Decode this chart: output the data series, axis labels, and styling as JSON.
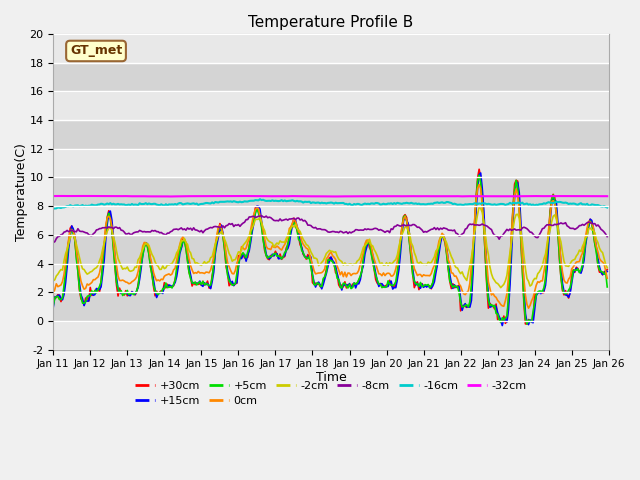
{
  "title": "Temperature Profile B",
  "xlabel": "Time",
  "ylabel": "Temperature(C)",
  "ylim": [
    -2,
    20
  ],
  "annotation": "GT_met",
  "fig_bg": "#f0f0f0",
  "plot_bg": "#e0e0e0",
  "band_colors": [
    "#e0e0e0",
    "#cccccc"
  ],
  "series": [
    {
      "label": "+30cm",
      "color": "#ff0000",
      "lw": 1.2
    },
    {
      "label": "+15cm",
      "color": "#0000ff",
      "lw": 1.2
    },
    {
      "label": "+5cm",
      "color": "#00dd00",
      "lw": 1.2
    },
    {
      "label": "0cm",
      "color": "#ff8800",
      "lw": 1.2
    },
    {
      "label": "-2cm",
      "color": "#cccc00",
      "lw": 1.2
    },
    {
      "label": "-8cm",
      "color": "#880099",
      "lw": 1.2
    },
    {
      "label": "-16cm",
      "color": "#00cccc",
      "lw": 1.5
    },
    {
      "label": "-32cm",
      "color": "#ff00ff",
      "lw": 1.5
    }
  ],
  "n_days": 15,
  "base_temp": 8.5,
  "seed": 0
}
